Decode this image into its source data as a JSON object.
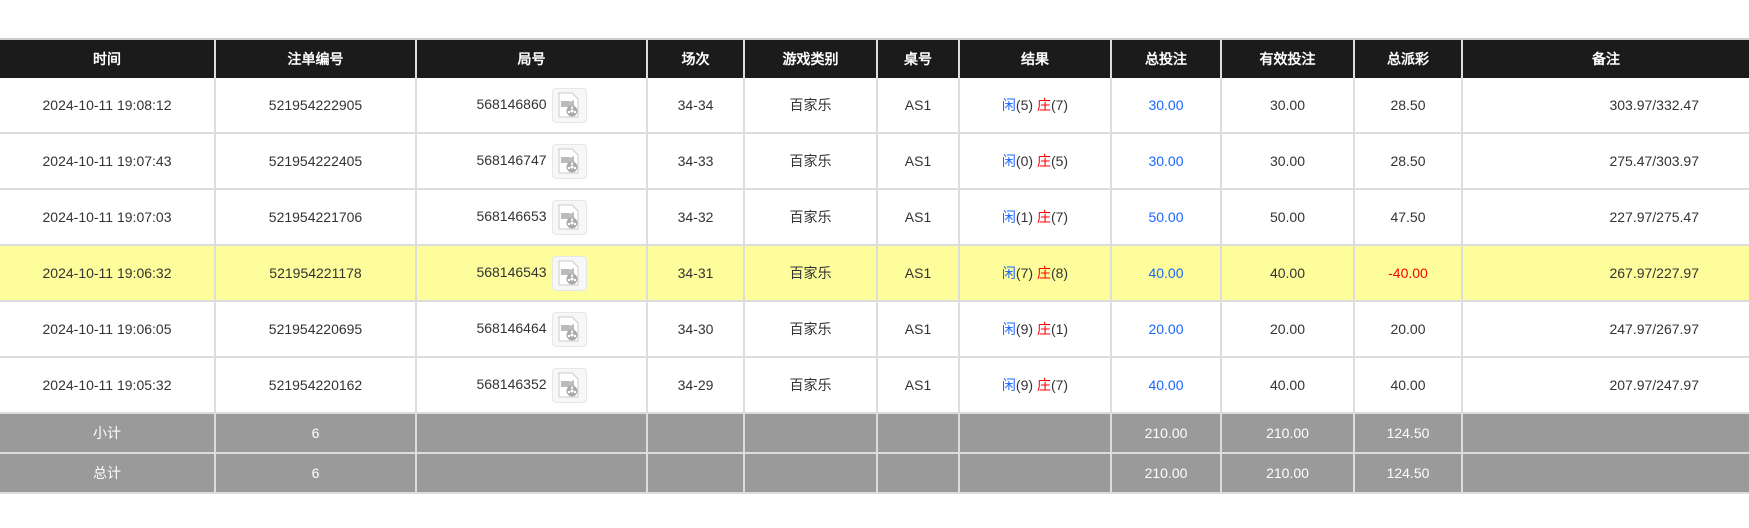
{
  "columns": [
    "时间",
    "注单编号",
    "局号",
    "场次",
    "游戏类别",
    "桌号",
    "结果",
    "总投注",
    "有效投注",
    "总派彩",
    "备注"
  ],
  "colors": {
    "header": "#1b1b1b",
    "highlight": "#fdfd9c",
    "summary": "#9a9a9a",
    "player": "#1a66ff",
    "banker": "#ff0000",
    "negative": "#ff0000"
  },
  "rows": [
    {
      "time": "2024-10-11 19:08:12",
      "bet_id": "521954222905",
      "round": "568146860",
      "shoe": "34-34",
      "game": "百家乐",
      "table": "AS1",
      "player": "闲",
      "player_pts": "(5)",
      "banker": "庄",
      "banker_pts": "(7)",
      "total_bet": "30.00",
      "valid_bet": "30.00",
      "payout": "28.50",
      "remark": "303.97/332.47",
      "highlight": false
    },
    {
      "time": "2024-10-11 19:07:43",
      "bet_id": "521954222405",
      "round": "568146747",
      "shoe": "34-33",
      "game": "百家乐",
      "table": "AS1",
      "player": "闲",
      "player_pts": "(0)",
      "banker": "庄",
      "banker_pts": "(5)",
      "total_bet": "30.00",
      "valid_bet": "30.00",
      "payout": "28.50",
      "remark": "275.47/303.97",
      "highlight": false
    },
    {
      "time": "2024-10-11 19:07:03",
      "bet_id": "521954221706",
      "round": "568146653",
      "shoe": "34-32",
      "game": "百家乐",
      "table": "AS1",
      "player": "闲",
      "player_pts": "(1)",
      "banker": "庄",
      "banker_pts": "(7)",
      "total_bet": "50.00",
      "valid_bet": "50.00",
      "payout": "47.50",
      "remark": "227.97/275.47",
      "highlight": false
    },
    {
      "time": "2024-10-11 19:06:32",
      "bet_id": "521954221178",
      "round": "568146543",
      "shoe": "34-31",
      "game": "百家乐",
      "table": "AS1",
      "player": "闲",
      "player_pts": "(7)",
      "banker": "庄",
      "banker_pts": "(8)",
      "total_bet": "40.00",
      "valid_bet": "40.00",
      "payout": "-40.00",
      "remark": "267.97/227.97",
      "highlight": true
    },
    {
      "time": "2024-10-11 19:06:05",
      "bet_id": "521954220695",
      "round": "568146464",
      "shoe": "34-30",
      "game": "百家乐",
      "table": "AS1",
      "player": "闲",
      "player_pts": "(9)",
      "banker": "庄",
      "banker_pts": "(1)",
      "total_bet": "20.00",
      "valid_bet": "20.00",
      "payout": "20.00",
      "remark": "247.97/267.97",
      "highlight": false
    },
    {
      "time": "2024-10-11 19:05:32",
      "bet_id": "521954220162",
      "round": "568146352",
      "shoe": "34-29",
      "game": "百家乐",
      "table": "AS1",
      "player": "闲",
      "player_pts": "(9)",
      "banker": "庄",
      "banker_pts": "(7)",
      "total_bet": "40.00",
      "valid_bet": "40.00",
      "payout": "40.00",
      "remark": "207.97/247.97",
      "highlight": false
    }
  ],
  "summary": [
    {
      "label": "小计",
      "count": "6",
      "total_bet": "210.00",
      "valid_bet": "210.00",
      "payout": "124.50"
    },
    {
      "label": "总计",
      "count": "6",
      "total_bet": "210.00",
      "valid_bet": "210.00",
      "payout": "124.50"
    }
  ],
  "icons": {
    "replay": "video-replay-icon"
  }
}
